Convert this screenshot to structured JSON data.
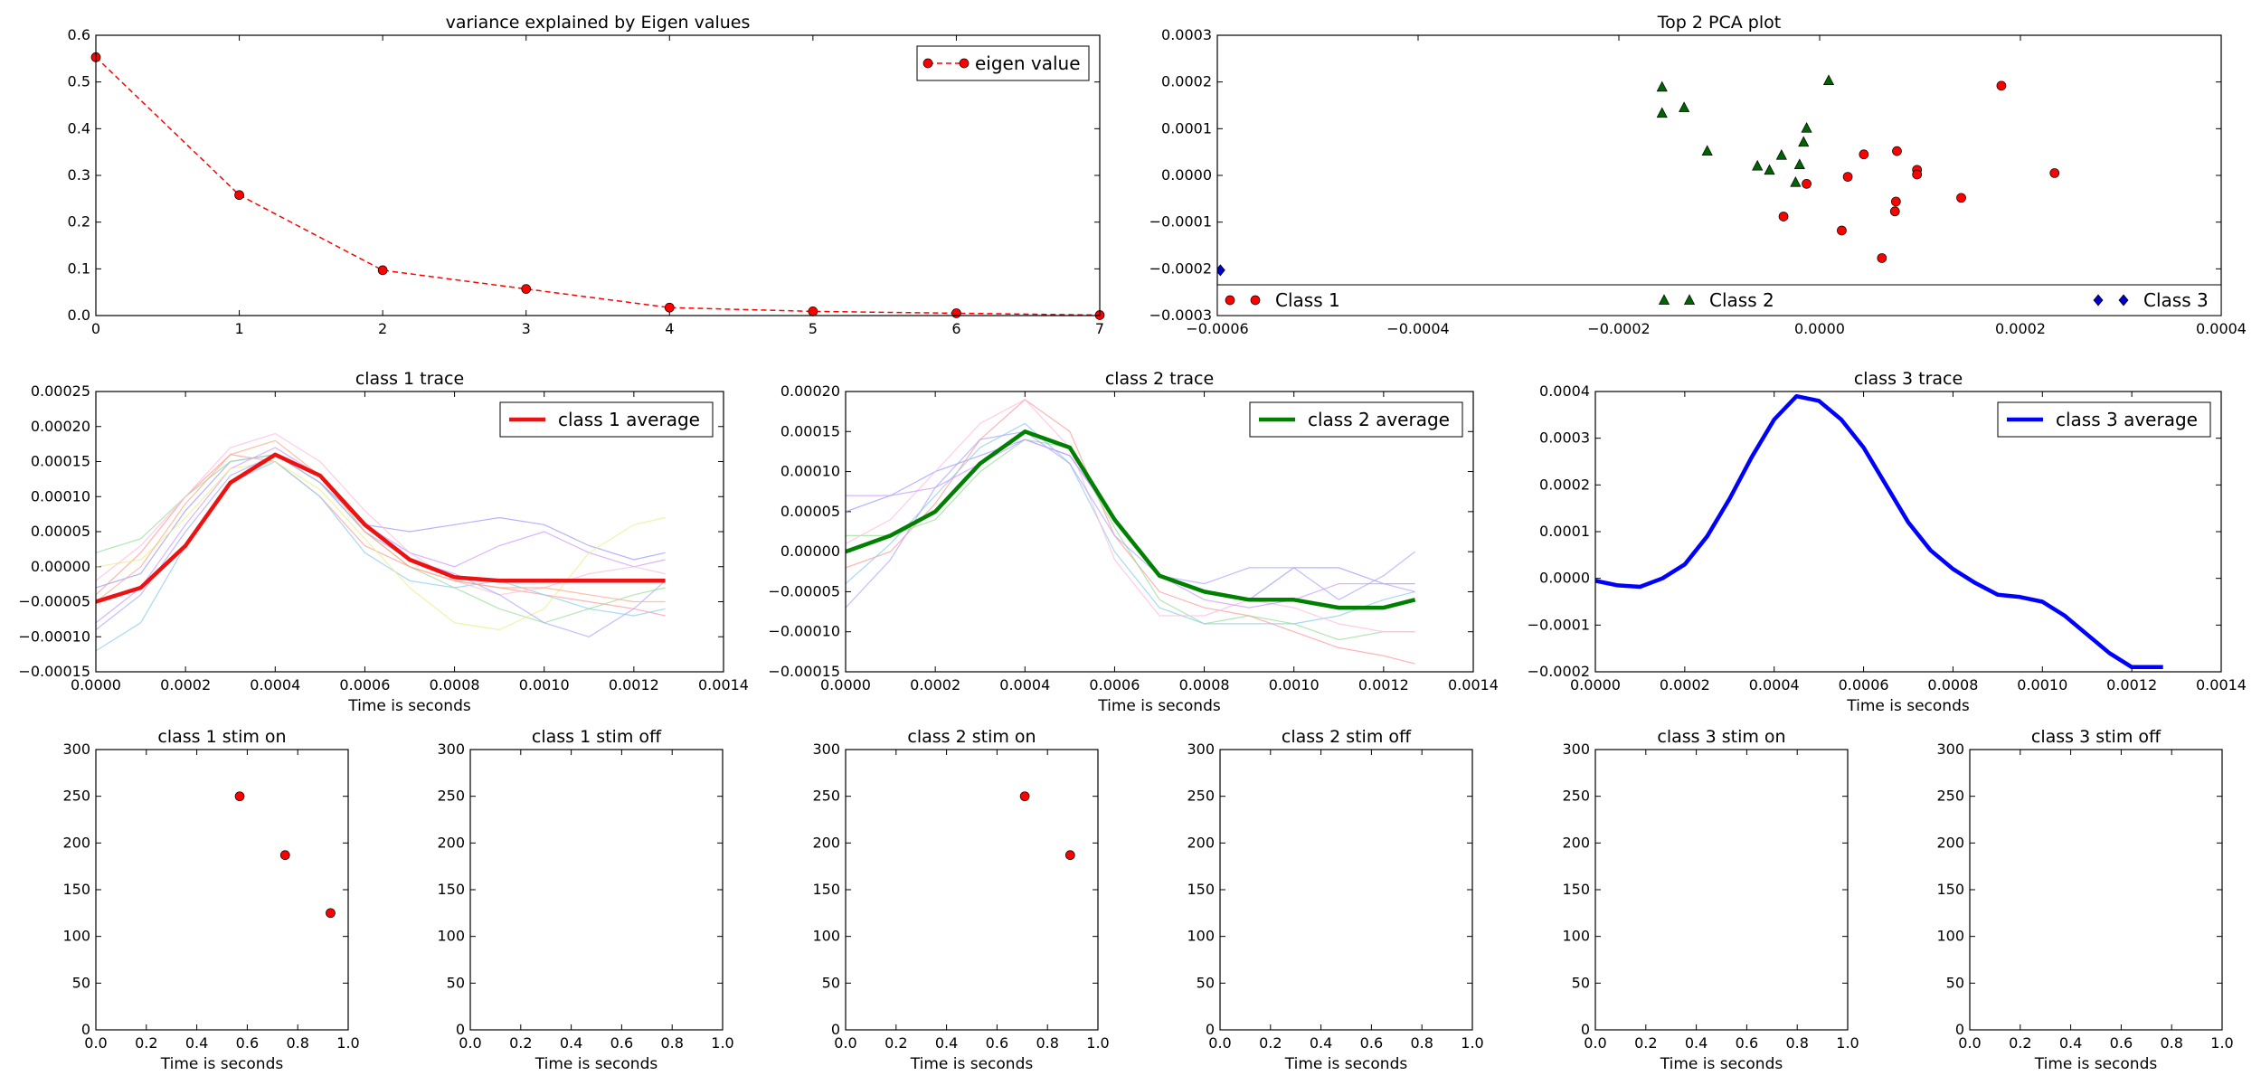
{
  "chart_data": [
    {
      "id": "eigen",
      "type": "line",
      "title": "variance explained by Eigen values",
      "xlabel": "",
      "ylabel": "",
      "xlim": [
        0,
        7
      ],
      "ylim": [
        0,
        0.6
      ],
      "xticks": [
        0,
        1,
        2,
        3,
        4,
        5,
        6,
        7
      ],
      "yticks": [
        0.0,
        0.1,
        0.2,
        0.3,
        0.4,
        0.5,
        0.6
      ],
      "xtick_labels": [
        "0",
        "1",
        "2",
        "3",
        "4",
        "5",
        "6",
        "7"
      ],
      "ytick_labels": [
        "0.0",
        "0.1",
        "0.2",
        "0.3",
        "0.4",
        "0.5",
        "0.6"
      ],
      "legend_position": "top-right",
      "series": [
        {
          "name": "eigen value",
          "style": "dashed-line-markers",
          "color": "#ff0000",
          "x": [
            0,
            1,
            2,
            3,
            4,
            5,
            6,
            7
          ],
          "y": [
            0.553,
            0.258,
            0.097,
            0.057,
            0.017,
            0.009,
            0.005,
            0.001
          ]
        }
      ]
    },
    {
      "id": "pca",
      "type": "scatter",
      "title": "Top 2 PCA plot",
      "xlabel": "",
      "ylabel": "",
      "xlim": [
        -0.0006,
        0.0004
      ],
      "ylim": [
        -0.0003,
        0.0003
      ],
      "xticks": [
        -0.0006,
        -0.0004,
        -0.0002,
        0.0,
        0.0002,
        0.0004
      ],
      "yticks": [
        -0.0003,
        -0.0002,
        -0.0001,
        0.0,
        0.0001,
        0.0002,
        0.0003
      ],
      "xtick_labels": [
        "−0.0006",
        "−0.0004",
        "−0.0002",
        "0.0000",
        "0.0002",
        "0.0004"
      ],
      "ytick_labels": [
        "−0.0003",
        "−0.0002",
        "−0.0001",
        "0.0000",
        "0.0001",
        "0.0002",
        "0.0003"
      ],
      "legend_position": "bottom",
      "series": [
        {
          "name": "Class 1",
          "marker": "circle",
          "color": "#ff0000",
          "x": [
            0.000181,
            0.000234,
            0.000141,
            9.7e-05,
            9.7e-05,
            7.7e-05,
            7.6e-05,
            7.5e-05,
            6.2e-05,
            4.4e-05,
            2.8e-05,
            2.2e-05,
            -1.3e-05,
            -3.6e-05
          ],
          "y": [
            0.000192,
            5e-06,
            -4.8e-05,
            1.2e-05,
            2e-06,
            5.2e-05,
            -5.6e-05,
            -7.7e-05,
            -0.000177,
            4.5e-05,
            -3e-06,
            -0.000118,
            -1.8e-05,
            -8.8e-05
          ]
        },
        {
          "name": "Class 2",
          "marker": "triangle",
          "color": "#006400",
          "x": [
            9e-06,
            -0.000157,
            -0.000157,
            -0.000135,
            -0.000112,
            -6.2e-05,
            -5e-05,
            -3.8e-05,
            -2e-05,
            -1.6e-05,
            -1.3e-05,
            -2.4e-05
          ],
          "y": [
            0.000203,
            0.000189,
            0.000133,
            0.000145,
            5.2e-05,
            2e-05,
            1.1e-05,
            4.3e-05,
            2.3e-05,
            7.1e-05,
            0.000101,
            -1.5e-05
          ]
        },
        {
          "name": "Class 3",
          "marker": "diamond",
          "color": "#0000cc",
          "x": [
            -0.000597
          ],
          "y": [
            -0.000203
          ]
        }
      ]
    },
    {
      "id": "c1trace",
      "type": "line",
      "title": "class 1 trace",
      "xlabel": "Time is seconds",
      "ylabel": "",
      "xlim": [
        0,
        0.0014
      ],
      "ylim": [
        -0.00015,
        0.00025
      ],
      "xticks": [
        0,
        0.0002,
        0.0004,
        0.0006,
        0.0008,
        0.001,
        0.0012,
        0.0014
      ],
      "yticks": [
        -0.00015,
        -0.0001,
        -5e-05,
        0,
        5e-05,
        0.0001,
        0.00015,
        0.0002,
        0.00025
      ],
      "xtick_labels": [
        "0.0000",
        "0.0002",
        "0.0004",
        "0.0006",
        "0.0008",
        "0.0010",
        "0.0012",
        "0.0014"
      ],
      "ytick_labels": [
        "−0.00015",
        "−0.00010",
        "−0.00005",
        "0.00000",
        "0.00005",
        "0.00010",
        "0.00015",
        "0.00020",
        "0.00025"
      ],
      "legend_position": "top-right",
      "x": [
        0,
        0.0001,
        0.0002,
        0.0003,
        0.0004,
        0.0005,
        0.0006,
        0.0007,
        0.0008,
        0.0009,
        0.001,
        0.0011,
        0.0012,
        0.00127
      ],
      "faint_series": [
        {
          "color": "#9999ff",
          "y": [
            -3e-05,
            -1e-05,
            8e-05,
            0.00015,
            0.00016,
            0.00012,
            6e-05,
            5e-05,
            6e-05,
            7e-05,
            6e-05,
            3e-05,
            1e-05,
            2e-05
          ]
        },
        {
          "color": "#ff9999",
          "y": [
            -4e-05,
            2e-05,
            0.0001,
            0.00016,
            0.00015,
            0.0001,
            3e-05,
            0.0,
            -2e-05,
            -3e-05,
            -4e-05,
            -5e-05,
            -6e-05,
            -7e-05
          ]
        },
        {
          "color": "#99dd99",
          "y": [
            2e-05,
            4e-05,
            0.0001,
            0.00015,
            0.00016,
            0.00012,
            5e-05,
            0.0,
            -3e-05,
            -6e-05,
            -8e-05,
            -6e-05,
            -4e-05,
            -3e-05
          ]
        },
        {
          "color": "#cc99ff",
          "y": [
            -8e-05,
            -3e-05,
            6e-05,
            0.00014,
            0.00017,
            0.00013,
            6e-05,
            2e-05,
            0.0,
            3e-05,
            5e-05,
            2e-05,
            0.0,
            1e-05
          ]
        },
        {
          "color": "#88ccee",
          "y": [
            -0.00012,
            -8e-05,
            3e-05,
            0.00012,
            0.00015,
            0.0001,
            2e-05,
            -2e-05,
            -3e-05,
            -2e-05,
            -4e-05,
            -6e-05,
            -7e-05,
            -6e-05
          ]
        },
        {
          "color": "#eeee88",
          "y": [
            0.0,
            1e-05,
            7e-05,
            0.00014,
            0.00015,
            0.00011,
            4e-05,
            -3e-05,
            -8e-05,
            -9e-05,
            -6e-05,
            2e-05,
            6e-05,
            7e-05
          ]
        },
        {
          "color": "#ffbbdd",
          "y": [
            -2e-05,
            3e-05,
            0.0001,
            0.00017,
            0.00019,
            0.00015,
            8e-05,
            2e-05,
            -2e-05,
            -4e-05,
            -3e-05,
            -1e-05,
            0.0,
            -1e-05
          ]
        },
        {
          "color": "#aaaaff",
          "y": [
            -9e-05,
            -4e-05,
            5e-05,
            0.00013,
            0.00016,
            0.00012,
            5e-05,
            1e-05,
            -1e-05,
            -4e-05,
            -8e-05,
            -0.0001,
            -6e-05,
            -2e-05
          ]
        },
        {
          "color": "#ffaa88",
          "y": [
            -5e-05,
            0.0,
            9e-05,
            0.00016,
            0.00018,
            0.00013,
            5e-05,
            0.0,
            -2e-05,
            -3e-05,
            -3e-05,
            -4e-05,
            -5e-05,
            -5e-05
          ]
        }
      ],
      "series": [
        {
          "name": "class 1 average",
          "color": "#ee1111",
          "y": [
            -5e-05,
            -3e-05,
            3e-05,
            0.00012,
            0.00016,
            0.00013,
            6e-05,
            1e-05,
            -1.5e-05,
            -2e-05,
            -2e-05,
            -2e-05,
            -2e-05,
            -2e-05
          ]
        }
      ]
    },
    {
      "id": "c2trace",
      "type": "line",
      "title": "class 2 trace",
      "xlabel": "Time is seconds",
      "ylabel": "",
      "xlim": [
        0,
        0.0014
      ],
      "ylim": [
        -0.00015,
        0.0002
      ],
      "xticks": [
        0,
        0.0002,
        0.0004,
        0.0006,
        0.0008,
        0.001,
        0.0012,
        0.0014
      ],
      "yticks": [
        -0.00015,
        -0.0001,
        -5e-05,
        0,
        5e-05,
        0.0001,
        0.00015,
        0.0002
      ],
      "xtick_labels": [
        "0.0000",
        "0.0002",
        "0.0004",
        "0.0006",
        "0.0008",
        "0.0010",
        "0.0012",
        "0.0014"
      ],
      "ytick_labels": [
        "−0.00015",
        "−0.00010",
        "−0.00005",
        "0.00000",
        "0.00005",
        "0.00010",
        "0.00015",
        "0.00020"
      ],
      "legend_position": "top-right",
      "x": [
        0,
        0.0001,
        0.0002,
        0.0003,
        0.0004,
        0.0005,
        0.0006,
        0.0007,
        0.0008,
        0.0009,
        0.001,
        0.0011,
        0.0012,
        0.00127
      ],
      "faint_series": [
        {
          "color": "#9999ff",
          "y": [
            5e-05,
            7e-05,
            0.0001,
            0.00012,
            0.00014,
            0.00012,
            4e-05,
            -3e-05,
            -5e-05,
            -6e-05,
            -2e-05,
            -2e-05,
            -4e-05,
            -4e-05
          ]
        },
        {
          "color": "#ff9999",
          "y": [
            -2e-05,
            0.0,
            6e-05,
            0.00014,
            0.00019,
            0.00015,
            2e-05,
            -5e-05,
            -7e-05,
            -8e-05,
            -0.0001,
            -0.00012,
            -0.00013,
            -0.00014
          ]
        },
        {
          "color": "#99dd99",
          "y": [
            2e-05,
            2e-05,
            4e-05,
            0.0001,
            0.00014,
            0.00013,
            3e-05,
            -6e-05,
            -9e-05,
            -8e-05,
            -9e-05,
            -0.00011,
            -0.0001,
            -0.0001
          ]
        },
        {
          "color": "#88ccee",
          "y": [
            -4e-05,
            1e-05,
            7e-05,
            0.00013,
            0.00016,
            0.00011,
            0.0,
            -7e-05,
            -9e-05,
            -9e-05,
            -9e-05,
            -8e-05,
            -6e-05,
            -5e-05
          ]
        },
        {
          "color": "#ffbbdd",
          "y": [
            1e-05,
            4e-05,
            0.0001,
            0.00016,
            0.00019,
            0.00013,
            -1e-05,
            -8e-05,
            -8e-05,
            -6e-05,
            -7e-05,
            -9e-05,
            -0.0001,
            -0.0001
          ]
        },
        {
          "color": "#aaaaff",
          "y": [
            -7e-05,
            -1e-05,
            8e-05,
            0.00014,
            0.00015,
            0.00011,
            2e-05,
            -3e-05,
            -4e-05,
            -2e-05,
            -2e-05,
            -6e-05,
            -3e-05,
            0.0
          ]
        },
        {
          "color": "#cc99ff",
          "y": [
            7e-05,
            7e-05,
            8e-05,
            0.00011,
            0.00014,
            0.00012,
            4e-05,
            -3e-05,
            -6e-05,
            -7e-05,
            -6e-05,
            -4e-05,
            -4e-05,
            -5e-05
          ]
        }
      ],
      "series": [
        {
          "name": "class 2 average",
          "color": "#008000",
          "y": [
            0.0,
            2e-05,
            5e-05,
            0.00011,
            0.00015,
            0.00013,
            4e-05,
            -3e-05,
            -5e-05,
            -6e-05,
            -6e-05,
            -7e-05,
            -7e-05,
            -6e-05
          ]
        }
      ]
    },
    {
      "id": "c3trace",
      "type": "line",
      "title": "class 3 trace",
      "xlabel": "Time is seconds",
      "ylabel": "",
      "xlim": [
        0,
        0.0014
      ],
      "ylim": [
        -0.0002,
        0.0004
      ],
      "xticks": [
        0,
        0.0002,
        0.0004,
        0.0006,
        0.0008,
        0.001,
        0.0012,
        0.0014
      ],
      "yticks": [
        -0.0002,
        -0.0001,
        0,
        0.0001,
        0.0002,
        0.0003,
        0.0004
      ],
      "xtick_labels": [
        "0.0000",
        "0.0002",
        "0.0004",
        "0.0006",
        "0.0008",
        "0.0010",
        "0.0012",
        "0.0014"
      ],
      "ytick_labels": [
        "−0.0002",
        "−0.0001",
        "0.0000",
        "0.0001",
        "0.0002",
        "0.0003",
        "0.0004"
      ],
      "legend_position": "top-right",
      "x": [
        0,
        5e-05,
        0.0001,
        0.00015,
        0.0002,
        0.00025,
        0.0003,
        0.00035,
        0.0004,
        0.00045,
        0.0005,
        0.00055,
        0.0006,
        0.00065,
        0.0007,
        0.00075,
        0.0008,
        0.00085,
        0.0009,
        0.00095,
        0.001,
        0.00105,
        0.0011,
        0.00115,
        0.0012,
        0.00127
      ],
      "series": [
        {
          "name": "class 3 average",
          "color": "#0000ff",
          "y": [
            -5e-06,
            -1.5e-05,
            -1.8e-05,
            0.0,
            3e-05,
            9e-05,
            0.00017,
            0.00026,
            0.00034,
            0.00039,
            0.00038,
            0.00034,
            0.00028,
            0.0002,
            0.00012,
            6e-05,
            2e-05,
            -1e-05,
            -3.5e-05,
            -4e-05,
            -5e-05,
            -8e-05,
            -0.00012,
            -0.00016,
            -0.00019,
            -0.00019
          ]
        }
      ]
    },
    {
      "id": "c1on",
      "type": "scatter",
      "title": "class 1 stim on",
      "xlabel": "Time is seconds",
      "xlim": [
        0,
        1.0
      ],
      "ylim": [
        0,
        300
      ],
      "xticks": [
        0,
        0.2,
        0.4,
        0.6,
        0.8,
        1.0
      ],
      "yticks": [
        0,
        50,
        100,
        150,
        200,
        250,
        300
      ],
      "xtick_labels": [
        "0.0",
        "0.2",
        "0.4",
        "0.6",
        "0.8",
        "1.0"
      ],
      "ytick_labels": [
        "0",
        "50",
        "100",
        "150",
        "200",
        "250",
        "300"
      ],
      "series": [
        {
          "color": "#ff0000",
          "x": [
            0.57,
            0.75,
            0.93
          ],
          "y": [
            250,
            187,
            125
          ]
        }
      ]
    },
    {
      "id": "c1off",
      "type": "scatter",
      "title": "class 1 stim off",
      "xlabel": "Time is seconds",
      "xlim": [
        0,
        1.0
      ],
      "ylim": [
        0,
        300
      ],
      "xticks": [
        0,
        0.2,
        0.4,
        0.6,
        0.8,
        1.0
      ],
      "yticks": [
        0,
        50,
        100,
        150,
        200,
        250,
        300
      ],
      "xtick_labels": [
        "0.0",
        "0.2",
        "0.4",
        "0.6",
        "0.8",
        "1.0"
      ],
      "ytick_labels": [
        "0",
        "50",
        "100",
        "150",
        "200",
        "250",
        "300"
      ],
      "series": []
    },
    {
      "id": "c2on",
      "type": "scatter",
      "title": "class 2 stim on",
      "xlabel": "Time is seconds",
      "xlim": [
        0,
        1.0
      ],
      "ylim": [
        0,
        300
      ],
      "xticks": [
        0,
        0.2,
        0.4,
        0.6,
        0.8,
        1.0
      ],
      "yticks": [
        0,
        50,
        100,
        150,
        200,
        250,
        300
      ],
      "xtick_labels": [
        "0.0",
        "0.2",
        "0.4",
        "0.6",
        "0.8",
        "1.0"
      ],
      "ytick_labels": [
        "0",
        "50",
        "100",
        "150",
        "200",
        "250",
        "300"
      ],
      "series": [
        {
          "color": "#ff0000",
          "x": [
            0.71,
            0.89
          ],
          "y": [
            250,
            187
          ]
        }
      ]
    },
    {
      "id": "c2off",
      "type": "scatter",
      "title": "class 2 stim off",
      "xlabel": "Time is seconds",
      "xlim": [
        0,
        1.0
      ],
      "ylim": [
        0,
        300
      ],
      "xticks": [
        0,
        0.2,
        0.4,
        0.6,
        0.8,
        1.0
      ],
      "yticks": [
        0,
        50,
        100,
        150,
        200,
        250,
        300
      ],
      "xtick_labels": [
        "0.0",
        "0.2",
        "0.4",
        "0.6",
        "0.8",
        "1.0"
      ],
      "ytick_labels": [
        "0",
        "50",
        "100",
        "150",
        "200",
        "250",
        "300"
      ],
      "series": []
    },
    {
      "id": "c3on",
      "type": "scatter",
      "title": "class 3 stim on",
      "xlabel": "Time is seconds",
      "xlim": [
        0,
        1.0
      ],
      "ylim": [
        0,
        300
      ],
      "xticks": [
        0,
        0.2,
        0.4,
        0.6,
        0.8,
        1.0
      ],
      "yticks": [
        0,
        50,
        100,
        150,
        200,
        250,
        300
      ],
      "xtick_labels": [
        "0.0",
        "0.2",
        "0.4",
        "0.6",
        "0.8",
        "1.0"
      ],
      "ytick_labels": [
        "0",
        "50",
        "100",
        "150",
        "200",
        "250",
        "300"
      ],
      "series": []
    },
    {
      "id": "c3off",
      "type": "scatter",
      "title": "class 3 stim off",
      "xlabel": "Time is seconds",
      "xlim": [
        0,
        1.0
      ],
      "ylim": [
        0,
        300
      ],
      "xticks": [
        0,
        0.2,
        0.4,
        0.6,
        0.8,
        1.0
      ],
      "yticks": [
        0,
        50,
        100,
        150,
        200,
        250,
        300
      ],
      "xtick_labels": [
        "0.0",
        "0.2",
        "0.4",
        "0.6",
        "0.8",
        "1.0"
      ],
      "ytick_labels": [
        "0",
        "50",
        "100",
        "150",
        "200",
        "250",
        "300"
      ],
      "series": []
    }
  ]
}
